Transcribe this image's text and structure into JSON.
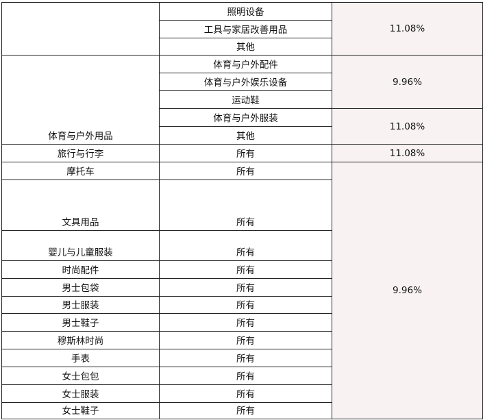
{
  "table": {
    "col1": {
      "home_blank": "",
      "sports": "体育与户外用品",
      "travel": "旅行与行李",
      "motorcycle": "摩托车",
      "stationery": "文具用品",
      "baby": "婴儿与儿童服装",
      "fashion_acc": "时尚配件",
      "men_bags": "男士包袋",
      "men_clothing": "男士服装",
      "men_shoes": "男士鞋子",
      "muslim": "穆斯林时尚",
      "watches": "手表",
      "women_bags": "女士包包",
      "women_clothing": "女士服装",
      "women_shoes": "女士鞋子"
    },
    "col2": [
      "照明设备",
      "工具与家居改善用品",
      "其他",
      "体育与户外配件",
      "体育与户外娱乐设备",
      "运动鞋",
      "体育与户外服装",
      "其他",
      "所有",
      "所有",
      "所有",
      "所有",
      "所有",
      "所有",
      "所有",
      "所有",
      "所有",
      "所有",
      "所有",
      "所有",
      "所有"
    ],
    "rates": [
      "11.08%",
      "9.96%",
      "11.08%",
      "11.08%",
      "9.96%"
    ],
    "rate_background": "#f8f2f3"
  }
}
